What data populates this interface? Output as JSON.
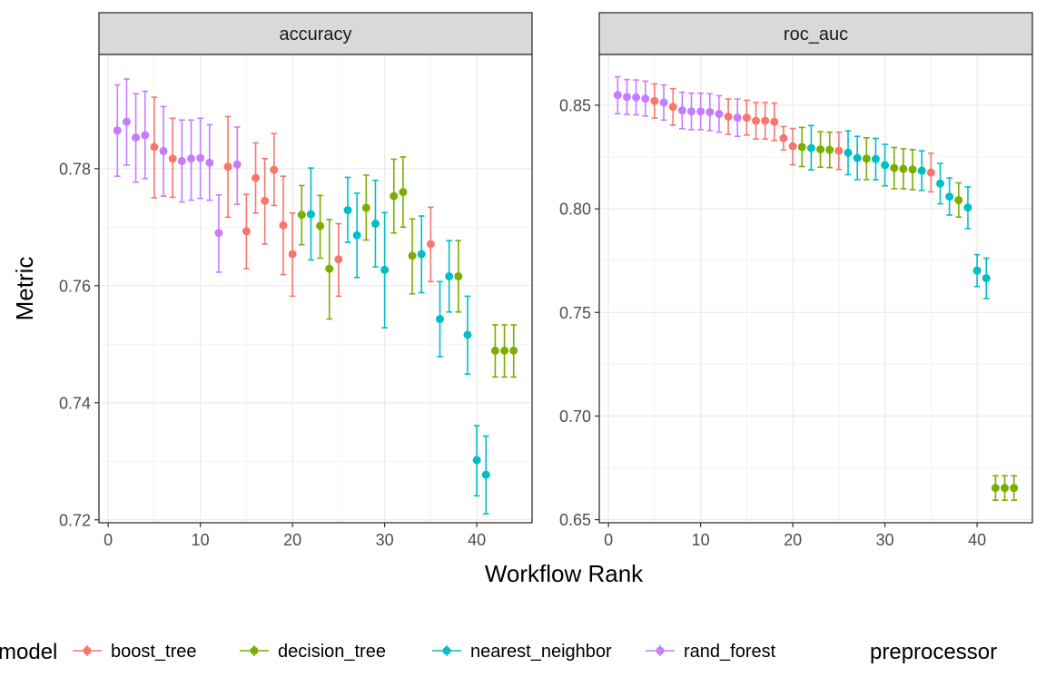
{
  "chart_data": {
    "type": "scatter",
    "x_label": "Workflow Rank",
    "y_label": "Metric",
    "legend": {
      "position": "bottom",
      "title": "model",
      "second_title": "preprocessor",
      "entries": [
        {
          "name": "boost_tree",
          "color": "#F8766D"
        },
        {
          "name": "decision_tree",
          "color": "#7CAE00"
        },
        {
          "name": "nearest_neighbor",
          "color": "#00BFC4"
        },
        {
          "name": "rand_forest",
          "color": "#C77CFF"
        }
      ]
    },
    "grid": true,
    "panels": [
      {
        "title": "accuracy",
        "xlim": [
          -1,
          46
        ],
        "ylim": [
          0.7195,
          0.7995
        ],
        "x_ticks": [
          0,
          10,
          20,
          30,
          40
        ],
        "y_ticks": [
          0.72,
          0.74,
          0.76,
          0.78
        ],
        "y_tick_labels": [
          "0.72",
          "0.74",
          "0.76",
          "0.78"
        ],
        "points": [
          {
            "rank": 1,
            "model": "rand_forest",
            "mean": 0.7865,
            "lower": 0.7787,
            "upper": 0.7943
          },
          {
            "rank": 2,
            "model": "rand_forest",
            "mean": 0.788,
            "lower": 0.7806,
            "upper": 0.7953
          },
          {
            "rank": 3,
            "model": "rand_forest",
            "mean": 0.7853,
            "lower": 0.7777,
            "upper": 0.7928
          },
          {
            "rank": 4,
            "model": "rand_forest",
            "mean": 0.7857,
            "lower": 0.7783,
            "upper": 0.7932
          },
          {
            "rank": 5,
            "model": "boost_tree",
            "mean": 0.7837,
            "lower": 0.775,
            "upper": 0.7922
          },
          {
            "rank": 6,
            "model": "rand_forest",
            "mean": 0.783,
            "lower": 0.7753,
            "upper": 0.7906
          },
          {
            "rank": 7,
            "model": "boost_tree",
            "mean": 0.7817,
            "lower": 0.7751,
            "upper": 0.7886
          },
          {
            "rank": 8,
            "model": "rand_forest",
            "mean": 0.7813,
            "lower": 0.7743,
            "upper": 0.7883
          },
          {
            "rank": 9,
            "model": "rand_forest",
            "mean": 0.7817,
            "lower": 0.7746,
            "upper": 0.7883
          },
          {
            "rank": 10,
            "model": "rand_forest",
            "mean": 0.7818,
            "lower": 0.7749,
            "upper": 0.7886
          },
          {
            "rank": 11,
            "model": "rand_forest",
            "mean": 0.781,
            "lower": 0.7746,
            "upper": 0.7875
          },
          {
            "rank": 12,
            "model": "rand_forest",
            "mean": 0.769,
            "lower": 0.7623,
            "upper": 0.7755
          },
          {
            "rank": 13,
            "model": "boost_tree",
            "mean": 0.7803,
            "lower": 0.7717,
            "upper": 0.7889
          },
          {
            "rank": 14,
            "model": "rand_forest",
            "mean": 0.7807,
            "lower": 0.7739,
            "upper": 0.7871
          },
          {
            "rank": 15,
            "model": "boost_tree",
            "mean": 0.7693,
            "lower": 0.7629,
            "upper": 0.7756
          },
          {
            "rank": 16,
            "model": "boost_tree",
            "mean": 0.7784,
            "lower": 0.7724,
            "upper": 0.7844
          },
          {
            "rank": 17,
            "model": "boost_tree",
            "mean": 0.7745,
            "lower": 0.7671,
            "upper": 0.7817
          },
          {
            "rank": 18,
            "model": "boost_tree",
            "mean": 0.7798,
            "lower": 0.7737,
            "upper": 0.786
          },
          {
            "rank": 19,
            "model": "boost_tree",
            "mean": 0.7703,
            "lower": 0.7619,
            "upper": 0.7787
          },
          {
            "rank": 20,
            "model": "boost_tree",
            "mean": 0.7654,
            "lower": 0.7582,
            "upper": 0.7724
          },
          {
            "rank": 21,
            "model": "decision_tree",
            "mean": 0.7721,
            "lower": 0.767,
            "upper": 0.7771
          },
          {
            "rank": 22,
            "model": "nearest_neighbor",
            "mean": 0.7722,
            "lower": 0.7644,
            "upper": 0.7801
          },
          {
            "rank": 23,
            "model": "decision_tree",
            "mean": 0.7702,
            "lower": 0.7647,
            "upper": 0.7754
          },
          {
            "rank": 24,
            "model": "decision_tree",
            "mean": 0.7629,
            "lower": 0.7543,
            "upper": 0.7713
          },
          {
            "rank": 25,
            "model": "boost_tree",
            "mean": 0.7645,
            "lower": 0.7582,
            "upper": 0.7706
          },
          {
            "rank": 26,
            "model": "nearest_neighbor",
            "mean": 0.7729,
            "lower": 0.7674,
            "upper": 0.7785
          },
          {
            "rank": 27,
            "model": "nearest_neighbor",
            "mean": 0.7686,
            "lower": 0.7614,
            "upper": 0.7758
          },
          {
            "rank": 28,
            "model": "decision_tree",
            "mean": 0.7733,
            "lower": 0.7678,
            "upper": 0.7789
          },
          {
            "rank": 29,
            "model": "nearest_neighbor",
            "mean": 0.7706,
            "lower": 0.7632,
            "upper": 0.778
          },
          {
            "rank": 30,
            "model": "nearest_neighbor",
            "mean": 0.7627,
            "lower": 0.7528,
            "upper": 0.7725
          },
          {
            "rank": 31,
            "model": "decision_tree",
            "mean": 0.7753,
            "lower": 0.769,
            "upper": 0.7816
          },
          {
            "rank": 32,
            "model": "decision_tree",
            "mean": 0.776,
            "lower": 0.77,
            "upper": 0.782
          },
          {
            "rank": 33,
            "model": "decision_tree",
            "mean": 0.7651,
            "lower": 0.7586,
            "upper": 0.7714
          },
          {
            "rank": 34,
            "model": "nearest_neighbor",
            "mean": 0.7654,
            "lower": 0.7588,
            "upper": 0.7719
          },
          {
            "rank": 35,
            "model": "boost_tree",
            "mean": 0.7671,
            "lower": 0.7607,
            "upper": 0.7734
          },
          {
            "rank": 36,
            "model": "nearest_neighbor",
            "mean": 0.7543,
            "lower": 0.7479,
            "upper": 0.7607
          },
          {
            "rank": 37,
            "model": "nearest_neighbor",
            "mean": 0.7616,
            "lower": 0.7555,
            "upper": 0.7677
          },
          {
            "rank": 38,
            "model": "decision_tree",
            "mean": 0.7616,
            "lower": 0.7555,
            "upper": 0.7677
          },
          {
            "rank": 39,
            "model": "nearest_neighbor",
            "mean": 0.7516,
            "lower": 0.7449,
            "upper": 0.7582
          },
          {
            "rank": 40,
            "model": "nearest_neighbor",
            "mean": 0.7302,
            "lower": 0.7241,
            "upper": 0.7361
          },
          {
            "rank": 41,
            "model": "nearest_neighbor",
            "mean": 0.7277,
            "lower": 0.721,
            "upper": 0.7343
          },
          {
            "rank": 42,
            "model": "decision_tree",
            "mean": 0.7489,
            "lower": 0.7444,
            "upper": 0.7533
          },
          {
            "rank": 43,
            "model": "decision_tree",
            "mean": 0.7489,
            "lower": 0.7444,
            "upper": 0.7533
          },
          {
            "rank": 44,
            "model": "decision_tree",
            "mean": 0.7489,
            "lower": 0.7444,
            "upper": 0.7533
          }
        ]
      },
      {
        "title": "roc_auc",
        "xlim": [
          -1,
          46
        ],
        "ylim": [
          0.6485,
          0.8745
        ],
        "x_ticks": [
          0,
          10,
          20,
          30,
          40
        ],
        "y_ticks": [
          0.65,
          0.7,
          0.75,
          0.8,
          0.85
        ],
        "y_tick_labels": [
          "0.65",
          "0.70",
          "0.75",
          "0.80",
          "0.85"
        ],
        "points": [
          {
            "rank": 1,
            "model": "rand_forest",
            "mean": 0.8549,
            "lower": 0.8459,
            "upper": 0.8637
          },
          {
            "rank": 2,
            "model": "rand_forest",
            "mean": 0.854,
            "lower": 0.8456,
            "upper": 0.8624
          },
          {
            "rank": 3,
            "model": "rand_forest",
            "mean": 0.8538,
            "lower": 0.8454,
            "upper": 0.8622
          },
          {
            "rank": 4,
            "model": "rand_forest",
            "mean": 0.8532,
            "lower": 0.8448,
            "upper": 0.8616
          },
          {
            "rank": 5,
            "model": "boost_tree",
            "mean": 0.8521,
            "lower": 0.8438,
            "upper": 0.8603
          },
          {
            "rank": 6,
            "model": "rand_forest",
            "mean": 0.8513,
            "lower": 0.8428,
            "upper": 0.8598
          },
          {
            "rank": 7,
            "model": "boost_tree",
            "mean": 0.8492,
            "lower": 0.8404,
            "upper": 0.858
          },
          {
            "rank": 8,
            "model": "rand_forest",
            "mean": 0.8475,
            "lower": 0.8387,
            "upper": 0.8563
          },
          {
            "rank": 9,
            "model": "rand_forest",
            "mean": 0.847,
            "lower": 0.8382,
            "upper": 0.8558
          },
          {
            "rank": 10,
            "model": "rand_forest",
            "mean": 0.847,
            "lower": 0.8382,
            "upper": 0.8558
          },
          {
            "rank": 11,
            "model": "rand_forest",
            "mean": 0.8467,
            "lower": 0.8378,
            "upper": 0.8555
          },
          {
            "rank": 12,
            "model": "rand_forest",
            "mean": 0.8458,
            "lower": 0.837,
            "upper": 0.8546
          },
          {
            "rank": 13,
            "model": "boost_tree",
            "mean": 0.8445,
            "lower": 0.836,
            "upper": 0.853
          },
          {
            "rank": 14,
            "model": "rand_forest",
            "mean": 0.844,
            "lower": 0.835,
            "upper": 0.853
          },
          {
            "rank": 15,
            "model": "boost_tree",
            "mean": 0.844,
            "lower": 0.8356,
            "upper": 0.8524
          },
          {
            "rank": 16,
            "model": "boost_tree",
            "mean": 0.8425,
            "lower": 0.8337,
            "upper": 0.8513
          },
          {
            "rank": 17,
            "model": "boost_tree",
            "mean": 0.8425,
            "lower": 0.8337,
            "upper": 0.8513
          },
          {
            "rank": 18,
            "model": "boost_tree",
            "mean": 0.842,
            "lower": 0.833,
            "upper": 0.851
          },
          {
            "rank": 19,
            "model": "boost_tree",
            "mean": 0.8341,
            "lower": 0.8284,
            "upper": 0.8397
          },
          {
            "rank": 20,
            "model": "boost_tree",
            "mean": 0.8302,
            "lower": 0.8213,
            "upper": 0.8388
          },
          {
            "rank": 21,
            "model": "decision_tree",
            "mean": 0.8298,
            "lower": 0.8204,
            "upper": 0.8393
          },
          {
            "rank": 22,
            "model": "nearest_neighbor",
            "mean": 0.8293,
            "lower": 0.8188,
            "upper": 0.8402
          },
          {
            "rank": 23,
            "model": "decision_tree",
            "mean": 0.8287,
            "lower": 0.8201,
            "upper": 0.8372
          },
          {
            "rank": 24,
            "model": "decision_tree",
            "mean": 0.8285,
            "lower": 0.8199,
            "upper": 0.837
          },
          {
            "rank": 25,
            "model": "boost_tree",
            "mean": 0.828,
            "lower": 0.819,
            "upper": 0.837
          },
          {
            "rank": 26,
            "model": "nearest_neighbor",
            "mean": 0.8271,
            "lower": 0.8165,
            "upper": 0.8376
          },
          {
            "rank": 27,
            "model": "nearest_neighbor",
            "mean": 0.8245,
            "lower": 0.8141,
            "upper": 0.835
          },
          {
            "rank": 28,
            "model": "decision_tree",
            "mean": 0.8242,
            "lower": 0.8141,
            "upper": 0.8343
          },
          {
            "rank": 29,
            "model": "nearest_neighbor",
            "mean": 0.824,
            "lower": 0.814,
            "upper": 0.834
          },
          {
            "rank": 30,
            "model": "nearest_neighbor",
            "mean": 0.8211,
            "lower": 0.8111,
            "upper": 0.8311
          },
          {
            "rank": 31,
            "model": "decision_tree",
            "mean": 0.8197,
            "lower": 0.8097,
            "upper": 0.8296
          },
          {
            "rank": 32,
            "model": "decision_tree",
            "mean": 0.8193,
            "lower": 0.8097,
            "upper": 0.829
          },
          {
            "rank": 33,
            "model": "decision_tree",
            "mean": 0.819,
            "lower": 0.8093,
            "upper": 0.8286
          },
          {
            "rank": 34,
            "model": "nearest_neighbor",
            "mean": 0.8184,
            "lower": 0.8089,
            "upper": 0.828
          },
          {
            "rank": 35,
            "model": "boost_tree",
            "mean": 0.8175,
            "lower": 0.8082,
            "upper": 0.8268
          },
          {
            "rank": 36,
            "model": "nearest_neighbor",
            "mean": 0.8122,
            "lower": 0.8024,
            "upper": 0.8219
          },
          {
            "rank": 37,
            "model": "nearest_neighbor",
            "mean": 0.8059,
            "lower": 0.797,
            "upper": 0.8149
          },
          {
            "rank": 38,
            "model": "decision_tree",
            "mean": 0.8042,
            "lower": 0.796,
            "upper": 0.8125
          },
          {
            "rank": 39,
            "model": "nearest_neighbor",
            "mean": 0.8006,
            "lower": 0.7905,
            "upper": 0.8106
          },
          {
            "rank": 40,
            "model": "nearest_neighbor",
            "mean": 0.7702,
            "lower": 0.7625,
            "upper": 0.7779
          },
          {
            "rank": 41,
            "model": "nearest_neighbor",
            "mean": 0.7665,
            "lower": 0.7567,
            "upper": 0.7762
          },
          {
            "rank": 42,
            "model": "decision_tree",
            "mean": 0.6653,
            "lower": 0.6594,
            "upper": 0.6712
          },
          {
            "rank": 43,
            "model": "decision_tree",
            "mean": 0.6653,
            "lower": 0.6594,
            "upper": 0.6712
          },
          {
            "rank": 44,
            "model": "decision_tree",
            "mean": 0.6653,
            "lower": 0.6594,
            "upper": 0.6712
          }
        ]
      }
    ]
  }
}
